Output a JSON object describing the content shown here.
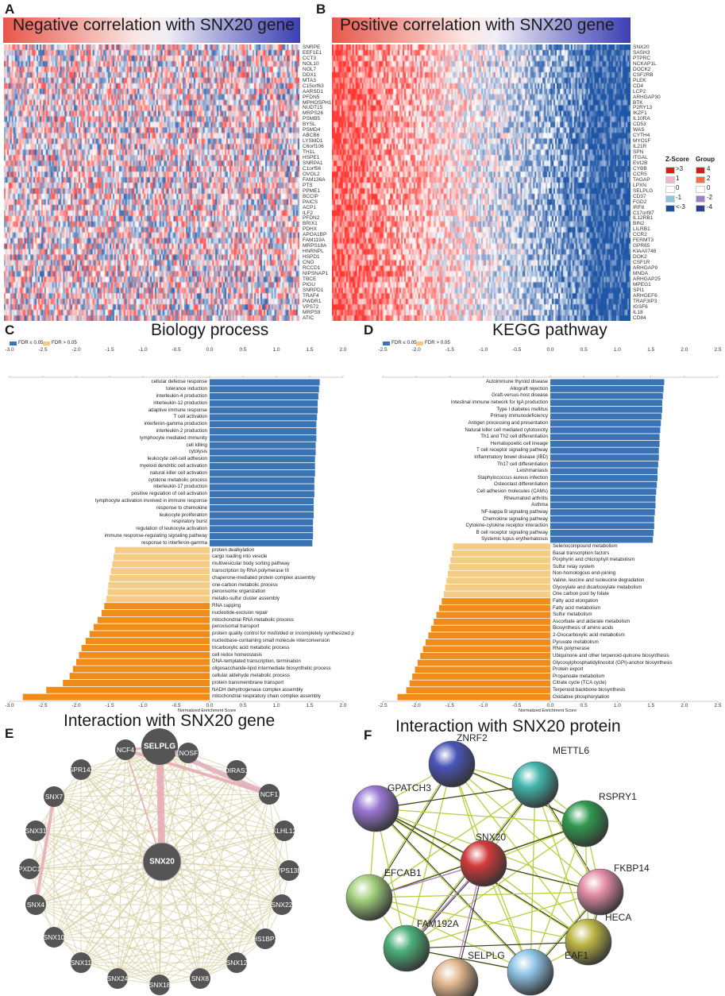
{
  "panels": {
    "A": {
      "letter": "A",
      "title": "Negative correlation with SNX20 gene",
      "genes": [
        "SNRPE",
        "EEF1E1",
        "CCT3",
        "NOL10",
        "NOL7",
        "DDX1",
        "MTA3",
        "C15orf63",
        "AARSD1",
        "PFDN5",
        "MPHOSPH1",
        "NUDT15",
        "MRPS26",
        "PSMB5",
        "BYSL",
        "PSMD4",
        "ABCB6",
        "LYSMD1",
        "C6orf106",
        "TH1L",
        "HSPE1",
        "SNRPA1",
        "C1orf56",
        "OVOL2",
        "FAM136A",
        "PTS",
        "PPME1",
        "BCCIP",
        "PAICS",
        "ACP1",
        "ILF2",
        "PFDN2",
        "BRIX1",
        "PDHX",
        "APOA1BP",
        "FAM119A",
        "MRPS18A",
        "HNRNPL",
        "HSPD1",
        "CNO",
        "RCCD1",
        "NIPSNAP1",
        "TBCE",
        "PIGU",
        "SNRPD1",
        "TRAF4",
        "PWDR1",
        "VPS72",
        "MRPS9",
        "ATIC"
      ]
    },
    "B": {
      "letter": "B",
      "title": "Positive correlation with SNX20 gene",
      "genes": [
        "SNX20",
        "SASH3",
        "PTPRC",
        "NCKAP1L",
        "DOCK2",
        "CSF2RB",
        "PLEK",
        "CD4",
        "LCP2",
        "ARHGAP30",
        "BTK",
        "P2RY13",
        "IKZF1",
        "IL10RA",
        "CD53",
        "WAS",
        "CYTH4",
        "MYO1F",
        "IL21R",
        "SPN",
        "ITGAL",
        "EVI2B",
        "CYBB",
        "CCR5",
        "TAGAP",
        "LPXN",
        "SELPLG",
        "CD37",
        "FGD2",
        "IRF8",
        "C17orf87",
        "IL12RB1",
        "BIN2",
        "LILRB1",
        "CCR2",
        "FERMT3",
        "GPR65",
        "KIAA0748",
        "DOK2",
        "CSF1R",
        "ARHGAP9",
        "MNDA",
        "ARHGAP25",
        "MPEG1",
        "SPI1",
        "ARHGEF6",
        "TRAF3IP3",
        "IGSF6",
        "IL18",
        "CD84"
      ],
      "legend": {
        "zscore_title": "Z-Score",
        "group_title": "Group",
        "zscore_items": [
          ">3",
          "1",
          "0",
          "-1",
          "<-3"
        ],
        "group_items": [
          "4",
          "2",
          "0",
          "-2",
          "-4"
        ],
        "zscore_colors": [
          "#e31a1c",
          "#f4b6c2",
          "#ffffff",
          "#92c5de",
          "#1f4e9c"
        ],
        "group_colors": [
          "#d7191c",
          "#f46d43",
          "#ffffff",
          "#9e7fc4",
          "#2c3e94"
        ]
      }
    },
    "C": {
      "letter": "C",
      "title": "Biology process",
      "xlabel": "Normalized Enrichment Score",
      "legend": [
        "FDR ≤ 0.05",
        "FDR > 0.05"
      ],
      "ticks": [
        "-3.0",
        "-2.5",
        "-2.0",
        "-1.5",
        "-1.0",
        "-0.5",
        "0.0",
        "0.5",
        "1.0",
        "1.5",
        "2.0"
      ]
    },
    "D": {
      "letter": "D",
      "title": "KEGG pathway",
      "xlabel": "Normalized Enrichment Score",
      "legend": [
        "FDR ≤ 0.05",
        "FDR > 0.05"
      ],
      "ticks": [
        "-2.5",
        "-2.0",
        "-1.5",
        "-1.0",
        "-0.5",
        "0.0",
        "0.5",
        "1.0",
        "1.5",
        "2.0",
        "2.5"
      ]
    },
    "E": {
      "letter": "E",
      "title": "Interaction with SNX20 gene",
      "nodes": [
        "SELPLG",
        "NCF4",
        "ENOSF1",
        "GPR142",
        "DIRAS1",
        "SNX7",
        "NCF1",
        "SNX31",
        "KLHL12",
        "PXDC1",
        "VPS13B",
        "SNX20",
        "SNX4",
        "SNX22",
        "SNX10",
        "HS1BP3",
        "SNX11",
        "SNX12",
        "SNX24",
        "SNX18",
        "SNX8"
      ]
    },
    "F": {
      "letter": "F",
      "title": "Interaction with SNX20 protein",
      "nodes": [
        "ZNRF2",
        "METTL6",
        "GPATCH3",
        "RSPRY1",
        "SNX20",
        "FKBP14",
        "EFCAB1",
        "HECA",
        "FAM192A",
        "SELPLG",
        "EAF1"
      ]
    }
  },
  "colors": {
    "fdr_sig": "#3a74b5",
    "fdr_nonsig": "#f5c87a",
    "bar_pos": "#3a74b5",
    "bar_neg_sig": "#ef8c1a",
    "bar_neg_nonsig": "#f5cc84"
  },
  "chart_data": [
    {
      "type": "bar",
      "title": "Biology process",
      "xlabel": "Normalized Enrichment Score",
      "xlim": [
        -3.0,
        2.0
      ],
      "categories": [
        "cellular defense response",
        "tolerance induction",
        "interleukin-4 production",
        "interleukin-12 production",
        "adaptive immune response",
        "T cell activation",
        "interferon-gamma production",
        "interleukin-2 production",
        "lymphocyte mediated immunity",
        "cell killing",
        "cytolysis",
        "leukocyte cell-cell adhesion",
        "myeloid dendritic cell activation",
        "natural killer cell activation",
        "cytokine metabolic process",
        "interleukin-17 production",
        "positive regulation of cell activation",
        "lymphocyte activation involved in immune response",
        "response to chemokine",
        "leukocyte proliferation",
        "respiratory burst",
        "regulation of leukocyte activation",
        "immune response-regulating signaling pathway",
        "response to interferon-gamma",
        "protein dealkylation",
        "cargo loading into vesicle",
        "multivesicular body sorting pathway",
        "transcription by RNA polymerase III",
        "chaperone-mediated protein complex assembly",
        "one-carbon metabolic process",
        "peroxisome organization",
        "metallo-sulfur cluster assembly",
        "RNA capping",
        "nucleotide-excision repair",
        "mitochondrial RNA metabolic process",
        "peroxisomal transport",
        "protein quality control for misfolded or incompletely synthesized p",
        "nucleobase-containing small molecule interconversion",
        "tricarboxylic acid metabolic process",
        "cell redox homeostasis",
        "DNA-templated transcription, termination",
        "oligosaccharide-lipid intermediate biosynthetic process",
        "cellular aldehyde metabolic process",
        "protein transmembrane transport",
        "NADH dehydrogenase complex assembly",
        "mitochondrial respiratory chain complex assembly"
      ],
      "values": [
        1.65,
        1.64,
        1.63,
        1.62,
        1.62,
        1.61,
        1.6,
        1.6,
        1.6,
        1.59,
        1.59,
        1.58,
        1.58,
        1.58,
        1.57,
        1.57,
        1.57,
        1.56,
        1.56,
        1.56,
        1.55,
        1.55,
        1.55,
        1.54,
        -1.42,
        -1.44,
        -1.46,
        -1.48,
        -1.5,
        -1.52,
        -1.53,
        -1.55,
        -1.58,
        -1.62,
        -1.68,
        -1.74,
        -1.8,
        -1.86,
        -1.92,
        -1.96,
        -2.0,
        -2.05,
        -2.1,
        -2.2,
        -2.45,
        -2.8
      ],
      "fdr_significant": [
        true,
        true,
        true,
        true,
        true,
        true,
        true,
        true,
        true,
        true,
        true,
        true,
        true,
        true,
        true,
        true,
        true,
        true,
        true,
        true,
        true,
        true,
        true,
        true,
        false,
        false,
        false,
        false,
        false,
        false,
        false,
        false,
        true,
        true,
        true,
        true,
        true,
        true,
        true,
        true,
        true,
        true,
        true,
        true,
        true,
        true
      ]
    },
    {
      "type": "bar",
      "title": "KEGG pathway",
      "xlabel": "Normalized Enrichment Score",
      "xlim": [
        -2.5,
        2.5
      ],
      "categories": [
        "Autoimmune thyroid disease",
        "Allograft rejection",
        "Graft-versus-host disease",
        "Intestinal immune network for IgA production",
        "Type I diabetes mellitus",
        "Primary immunodeficiency",
        "Antigen processing and presentation",
        "Natural killer cell mediated cytotoxicity",
        "Th1 and Th2 cell differentiation",
        "Hematopoietic cell lineage",
        "T cell receptor signaling pathway",
        "Inflammatory bowel disease (IBD)",
        "Th17 cell differentiation",
        "Leishmaniasis",
        "Staphylococcus aureus infection",
        "Osteoclast differentiation",
        "Cell adhesion molecules (CAMs)",
        "Rheumatoid arthritis",
        "Asthma",
        "NF-kappa B signaling pathway",
        "Chemokine signaling pathway",
        "Cytokine-cytokine receptor interaction",
        "B cell receptor signaling pathway",
        "Systemic lupus erythematosus",
        "Selenocompound metabolism",
        "Basal transcription factors",
        "Porphyrin and chlorophyll metabolism",
        "Sulfur relay system",
        "Non-homologous end-joining",
        "Valine, leucine and isoleucine degradation",
        "Glyoxylate and dicarboxylate metabolism",
        "One carbon pool by folate",
        "Fatty acid elongation",
        "Fatty acid metabolism",
        "Sulfur metabolism",
        "Ascorbate and aldarate metabolism",
        "Biosynthesis of amino acids",
        "2-Oxocarboxylic acid metabolism",
        "Pyruvate metabolism",
        "RNA polymerase",
        "Ubiquinone and other terpenoid-quinone biosynthesis",
        "Glycosylphosphatidylinositol (GPI)-anchor biosynthesis",
        "Protein export",
        "Propanoate metabolism",
        "Citrate cycle (TCA cycle)",
        "Terpenoid backbone biosynthesis",
        "Oxidative phosphorylation"
      ],
      "values": [
        1.7,
        1.69,
        1.68,
        1.67,
        1.67,
        1.66,
        1.65,
        1.64,
        1.63,
        1.63,
        1.62,
        1.62,
        1.61,
        1.6,
        1.6,
        1.59,
        1.58,
        1.57,
        1.57,
        1.56,
        1.55,
        1.55,
        1.54,
        1.53,
        -1.45,
        -1.47,
        -1.49,
        -1.51,
        -1.53,
        -1.55,
        -1.57,
        -1.59,
        -1.62,
        -1.66,
        -1.7,
        -1.74,
        -1.78,
        -1.82,
        -1.86,
        -1.9,
        -1.94,
        -1.98,
        -2.02,
        -2.06,
        -2.1,
        -2.15,
        -2.28
      ],
      "fdr_significant": [
        true,
        true,
        true,
        true,
        true,
        true,
        true,
        true,
        true,
        true,
        true,
        true,
        true,
        true,
        true,
        true,
        true,
        true,
        true,
        true,
        true,
        true,
        true,
        true,
        false,
        false,
        false,
        false,
        false,
        false,
        false,
        false,
        true,
        true,
        true,
        true,
        true,
        true,
        true,
        true,
        true,
        true,
        true,
        true,
        true,
        true,
        true
      ]
    }
  ]
}
